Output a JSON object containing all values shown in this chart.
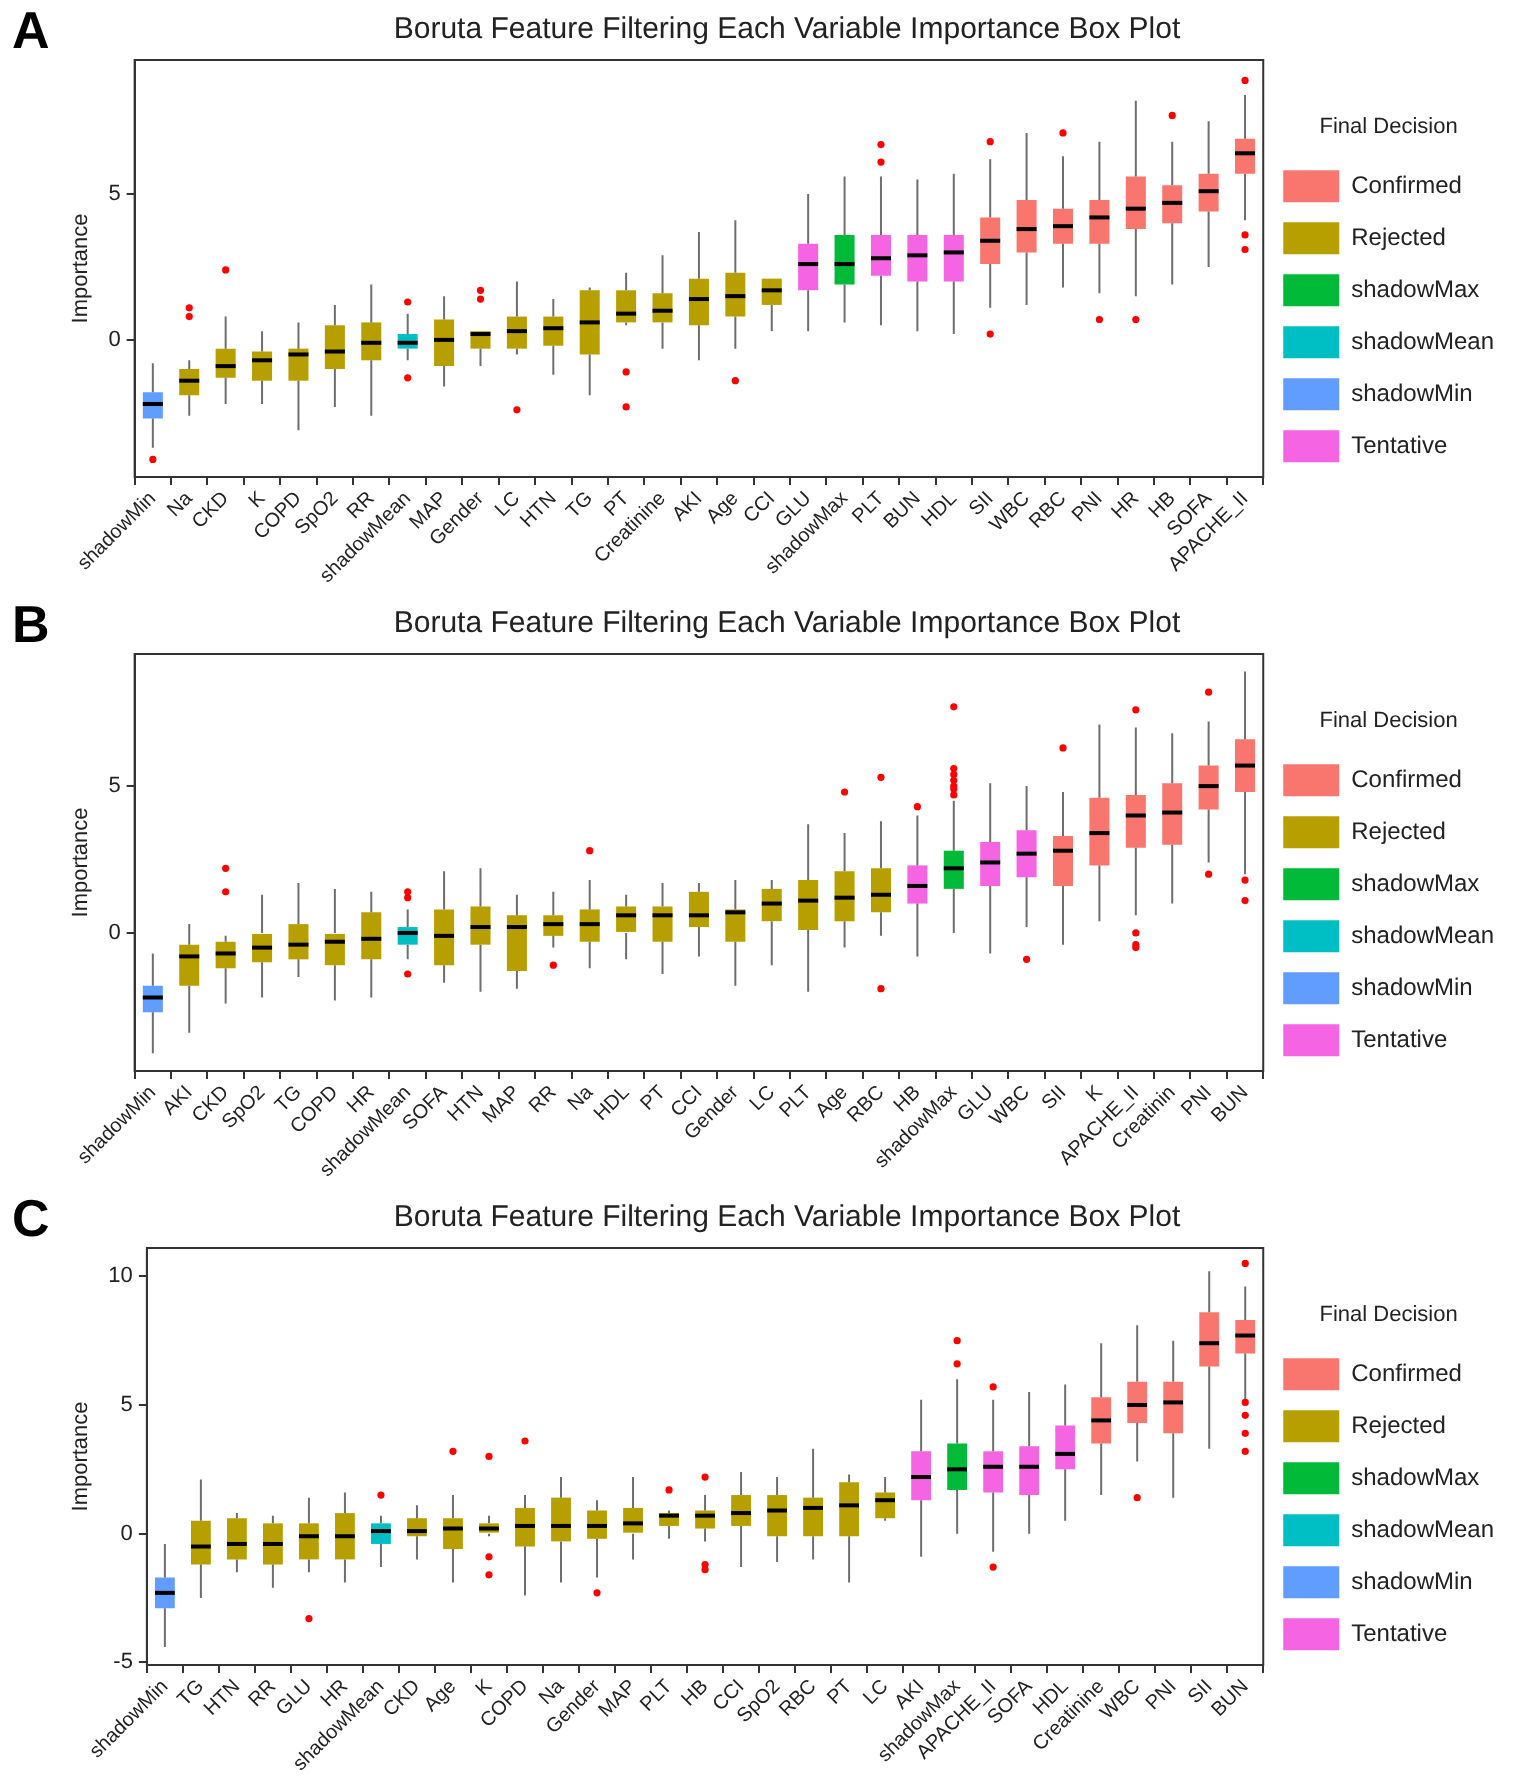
{
  "chart_data": [
    {
      "type": "box",
      "title": "Boruta Feature Filtering Each Variable Importance Box Plot",
      "ylabel": "Importance",
      "legend_title": "Final Decision",
      "legend": "right",
      "annotations": [
        "A"
      ],
      "ylim": [
        -4.7,
        9.6
      ],
      "yticks": [
        0,
        5
      ],
      "categories": [
        "shadowMin",
        "Na",
        "CKD",
        "K",
        "COPD",
        "SpO2",
        "RR",
        "shadowMean",
        "MAP",
        "Gender",
        "LC",
        "HTN",
        "TG",
        "PT",
        "Creatinine",
        "AKI",
        "Age",
        "CCI",
        "GLU",
        "shadowMax",
        "PLT",
        "BUN",
        "HDL",
        "SII",
        "WBC",
        "RBC",
        "PNI",
        "HR",
        "HB",
        "SOFA",
        "APACHE_II"
      ],
      "series": [
        {
          "name": "Confirmed",
          "color": "#f8766d",
          "boxes": [
            null,
            null,
            null,
            null,
            null,
            null,
            null,
            null,
            null,
            null,
            null,
            null,
            null,
            null,
            null,
            null,
            null,
            null,
            null,
            null,
            null,
            null,
            null,
            {
              "low": 1.1,
              "q1": 2.6,
              "median": 3.4,
              "q3": 4.2,
              "high": 6.2,
              "outliers": [
                6.8,
                0.2
              ]
            },
            {
              "low": 1.2,
              "q1": 3.0,
              "median": 3.8,
              "q3": 4.8,
              "high": 7.1
            },
            {
              "low": 1.8,
              "q1": 3.3,
              "median": 3.9,
              "q3": 4.5,
              "high": 6.3,
              "outliers": [
                7.1
              ]
            },
            {
              "low": 1.6,
              "q1": 3.3,
              "median": 4.2,
              "q3": 4.8,
              "high": 6.8,
              "outliers": [
                0.7
              ]
            },
            {
              "low": 1.5,
              "q1": 3.8,
              "median": 4.5,
              "q3": 5.6,
              "high": 8.2,
              "outliers": [
                0.7
              ]
            },
            {
              "low": 1.9,
              "q1": 4.0,
              "median": 4.7,
              "q3": 5.3,
              "high": 6.8,
              "outliers": [
                7.7
              ]
            },
            {
              "low": 2.5,
              "q1": 4.4,
              "median": 5.1,
              "q3": 5.7,
              "high": 7.5
            },
            {
              "low": 4.1,
              "q1": 5.7,
              "median": 6.4,
              "q3": 6.9,
              "high": 8.4,
              "outliers": [
                8.9,
                3.6,
                3.1
              ]
            }
          ]
        },
        {
          "name": "Rejected",
          "color": "#b79f00",
          "boxes": [
            null,
            {
              "low": -2.6,
              "q1": -1.9,
              "median": -1.4,
              "q3": -1.0,
              "high": -0.7,
              "outliers": [
                1.1,
                0.8
              ]
            },
            {
              "low": -2.2,
              "q1": -1.3,
              "median": -0.9,
              "q3": -0.3,
              "high": 0.8,
              "outliers": [
                2.4
              ]
            },
            {
              "low": -2.2,
              "q1": -1.4,
              "median": -0.7,
              "q3": -0.4,
              "high": 0.3
            },
            {
              "low": -3.1,
              "q1": -1.4,
              "median": -0.5,
              "q3": -0.3,
              "high": 0.6
            },
            {
              "low": -2.3,
              "q1": -1.0,
              "median": -0.4,
              "q3": 0.5,
              "high": 1.2
            },
            {
              "low": -2.6,
              "q1": -0.7,
              "median": -0.1,
              "q3": 0.6,
              "high": 1.9
            },
            null,
            {
              "low": -1.6,
              "q1": -0.9,
              "median": 0.0,
              "q3": 0.7,
              "high": 1.5
            },
            {
              "low": -0.9,
              "q1": -0.3,
              "median": 0.2,
              "q3": 0.3,
              "high": 0.3,
              "outliers": [
                1.7,
                1.4
              ]
            },
            {
              "low": -0.5,
              "q1": -0.3,
              "median": 0.3,
              "q3": 0.8,
              "high": 2.0,
              "outliers": [
                -2.4
              ]
            },
            {
              "low": -1.2,
              "q1": -0.2,
              "median": 0.4,
              "q3": 0.8,
              "high": 1.4
            },
            {
              "low": -1.9,
              "q1": -0.5,
              "median": 0.6,
              "q3": 1.7,
              "high": 1.8
            },
            {
              "low": 0.5,
              "q1": 0.6,
              "median": 0.9,
              "q3": 1.7,
              "high": 2.3,
              "outliers": [
                -1.1,
                -2.3
              ]
            },
            {
              "low": -0.3,
              "q1": 0.6,
              "median": 1.0,
              "q3": 1.6,
              "high": 2.9
            },
            {
              "low": -0.7,
              "q1": 0.5,
              "median": 1.4,
              "q3": 2.1,
              "high": 3.7
            },
            {
              "low": -0.3,
              "q1": 0.8,
              "median": 1.5,
              "q3": 2.3,
              "high": 4.1,
              "outliers": [
                -1.4
              ]
            },
            {
              "low": 0.3,
              "q1": 1.2,
              "median": 1.7,
              "q3": 2.1,
              "high": 2.1
            },
            null,
            null,
            null,
            null,
            null,
            null,
            null,
            null,
            null,
            null,
            null,
            null,
            null
          ]
        },
        {
          "name": "shadowMax",
          "color": "#00ba38",
          "boxes": [
            null,
            null,
            null,
            null,
            null,
            null,
            null,
            null,
            null,
            null,
            null,
            null,
            null,
            null,
            null,
            null,
            null,
            null,
            null,
            {
              "low": 0.6,
              "q1": 1.9,
              "median": 2.6,
              "q3": 3.6,
              "high": 5.6
            },
            null,
            null,
            null,
            null,
            null,
            null,
            null,
            null,
            null,
            null,
            null
          ]
        },
        {
          "name": "shadowMean",
          "color": "#00bfc4",
          "boxes": [
            null,
            null,
            null,
            null,
            null,
            null,
            null,
            {
              "low": -0.7,
              "q1": -0.3,
              "median": -0.1,
              "q3": 0.2,
              "high": 0.9,
              "outliers": [
                1.3,
                -1.3
              ]
            },
            null,
            null,
            null,
            null,
            null,
            null,
            null,
            null,
            null,
            null,
            null,
            null,
            null,
            null,
            null,
            null,
            null,
            null,
            null,
            null,
            null,
            null,
            null
          ]
        },
        {
          "name": "shadowMin",
          "color": "#619cff",
          "boxes": [
            {
              "low": -3.7,
              "q1": -2.7,
              "median": -2.2,
              "q3": -1.8,
              "high": -0.8,
              "outliers": [
                -4.1
              ]
            },
            null,
            null,
            null,
            null,
            null,
            null,
            null,
            null,
            null,
            null,
            null,
            null,
            null,
            null,
            null,
            null,
            null,
            null,
            null,
            null,
            null,
            null,
            null,
            null,
            null,
            null,
            null,
            null,
            null,
            null
          ]
        },
        {
          "name": "Tentative",
          "color": "#f564e3",
          "boxes": [
            null,
            null,
            null,
            null,
            null,
            null,
            null,
            null,
            null,
            null,
            null,
            null,
            null,
            null,
            null,
            null,
            null,
            null,
            {
              "low": 0.3,
              "q1": 1.7,
              "median": 2.6,
              "q3": 3.3,
              "high": 5.0
            },
            null,
            {
              "low": 0.5,
              "q1": 2.2,
              "median": 2.8,
              "q3": 3.6,
              "high": 5.6,
              "outliers": [
                6.7,
                6.1
              ]
            },
            {
              "low": 0.3,
              "q1": 2.0,
              "median": 2.9,
              "q3": 3.6,
              "high": 5.5
            },
            {
              "low": 0.2,
              "q1": 2.0,
              "median": 3.0,
              "q3": 3.6,
              "high": 5.7
            },
            null,
            null,
            null,
            null,
            null,
            null,
            null,
            null
          ]
        }
      ]
    },
    {
      "type": "box",
      "title": "Boruta Feature Filtering Each Variable Importance Box Plot",
      "ylabel": "Importance",
      "legend_title": "Final Decision",
      "legend": "right",
      "annotations": [
        "B"
      ],
      "ylim": [
        -4.7,
        9.5
      ],
      "yticks": [
        0,
        5
      ],
      "categories": [
        "shadowMin",
        "AKI",
        "CKD",
        "SpO2",
        "TG",
        "COPD",
        "HR",
        "shadowMean",
        "SOFA",
        "HTN",
        "MAP",
        "RR",
        "Na",
        "HDL",
        "PT",
        "CCI",
        "Gender",
        "LC",
        "PLT",
        "Age",
        "RBC",
        "HB",
        "shadowMax",
        "GLU",
        "WBC",
        "SII",
        "K",
        "APACHE_II",
        "Creatinin",
        "PNI",
        "BUN"
      ],
      "series": [
        {
          "name": "Confirmed",
          "color": "#f8766d",
          "boxes": [
            null,
            null,
            null,
            null,
            null,
            null,
            null,
            null,
            null,
            null,
            null,
            null,
            null,
            null,
            null,
            null,
            null,
            null,
            null,
            null,
            null,
            null,
            null,
            null,
            null,
            {
              "low": -0.4,
              "q1": 1.6,
              "median": 2.8,
              "q3": 3.3,
              "high": 4.8,
              "outliers": [
                6.3
              ]
            },
            {
              "low": 0.4,
              "q1": 2.3,
              "median": 3.4,
              "q3": 4.6,
              "high": 7.1
            },
            {
              "low": 0.6,
              "q1": 2.9,
              "median": 4.0,
              "q3": 4.7,
              "high": 7.0,
              "outliers": [
                7.6,
                0.0,
                -0.4,
                -0.5
              ]
            },
            {
              "low": 1.0,
              "q1": 3.0,
              "median": 4.1,
              "q3": 5.1,
              "high": 6.8
            },
            {
              "low": 2.4,
              "q1": 4.2,
              "median": 5.0,
              "q3": 5.7,
              "high": 7.2,
              "outliers": [
                8.2,
                2.0
              ]
            },
            {
              "low": 2.0,
              "q1": 4.8,
              "median": 5.7,
              "q3": 6.6,
              "high": 8.9,
              "outliers": [
                1.8,
                1.1
              ]
            }
          ]
        },
        {
          "name": "Rejected",
          "color": "#b79f00",
          "boxes": [
            null,
            {
              "low": -3.4,
              "q1": -1.8,
              "median": -0.8,
              "q3": -0.4,
              "high": 0.3
            },
            {
              "low": -2.4,
              "q1": -1.2,
              "median": -0.7,
              "q3": -0.3,
              "high": -0.1,
              "outliers": [
                2.2,
                1.4
              ]
            },
            {
              "low": -2.2,
              "q1": -1.0,
              "median": -0.5,
              "q3": 0.0,
              "high": 1.3
            },
            {
              "low": -1.5,
              "q1": -0.9,
              "median": -0.4,
              "q3": 0.3,
              "high": 1.7
            },
            {
              "low": -2.3,
              "q1": -1.1,
              "median": -0.3,
              "q3": 0.0,
              "high": 1.5
            },
            {
              "low": -2.2,
              "q1": -0.9,
              "median": -0.2,
              "q3": 0.7,
              "high": 1.4
            },
            null,
            {
              "low": -1.7,
              "q1": -1.1,
              "median": -0.1,
              "q3": 0.8,
              "high": 2.1
            },
            {
              "low": -2.0,
              "q1": -0.4,
              "median": 0.2,
              "q3": 0.9,
              "high": 2.2
            },
            {
              "low": -1.9,
              "q1": -1.3,
              "median": 0.2,
              "q3": 0.6,
              "high": 1.3
            },
            {
              "low": -0.5,
              "q1": -0.1,
              "median": 0.3,
              "q3": 0.6,
              "high": 1.4,
              "outliers": [
                -1.1
              ]
            },
            {
              "low": -1.2,
              "q1": -0.3,
              "median": 0.3,
              "q3": 0.8,
              "high": 1.8,
              "outliers": [
                2.8
              ]
            },
            {
              "low": -0.9,
              "q1": 0.0,
              "median": 0.6,
              "q3": 0.9,
              "high": 1.3
            },
            {
              "low": -1.4,
              "q1": -0.3,
              "median": 0.6,
              "q3": 0.9,
              "high": 1.7
            },
            {
              "low": -0.8,
              "q1": 0.2,
              "median": 0.6,
              "q3": 1.4,
              "high": 1.7
            },
            {
              "low": -1.8,
              "q1": -0.3,
              "median": 0.7,
              "q3": 0.8,
              "high": 1.8
            },
            {
              "low": -1.1,
              "q1": 0.4,
              "median": 1.0,
              "q3": 1.5,
              "high": 1.8
            },
            {
              "low": -2.0,
              "q1": 0.1,
              "median": 1.1,
              "q3": 1.8,
              "high": 3.7
            },
            {
              "low": -0.5,
              "q1": 0.4,
              "median": 1.2,
              "q3": 2.1,
              "high": 3.4,
              "outliers": [
                4.8
              ]
            },
            {
              "low": -0.1,
              "q1": 0.7,
              "median": 1.3,
              "q3": 2.2,
              "high": 3.8,
              "outliers": [
                5.3,
                -1.9
              ]
            },
            null,
            null,
            null,
            null,
            null,
            null,
            null,
            null,
            null,
            null
          ]
        },
        {
          "name": "shadowMax",
          "color": "#00ba38",
          "boxes": [
            null,
            null,
            null,
            null,
            null,
            null,
            null,
            null,
            null,
            null,
            null,
            null,
            null,
            null,
            null,
            null,
            null,
            null,
            null,
            null,
            null,
            null,
            {
              "low": 0.0,
              "q1": 1.5,
              "median": 2.2,
              "q3": 2.8,
              "high": 4.5,
              "outliers": [
                7.7,
                5.6,
                5.4,
                5.2,
                5.0,
                4.9,
                4.7
              ]
            },
            null,
            null,
            null,
            null,
            null,
            null,
            null,
            null
          ]
        },
        {
          "name": "shadowMean",
          "color": "#00bfc4",
          "boxes": [
            null,
            null,
            null,
            null,
            null,
            null,
            null,
            {
              "low": -0.9,
              "q1": -0.4,
              "median": 0.0,
              "q3": 0.2,
              "high": 0.8,
              "outliers": [
                1.4,
                1.2,
                -1.4
              ]
            },
            null,
            null,
            null,
            null,
            null,
            null,
            null,
            null,
            null,
            null,
            null,
            null,
            null,
            null,
            null,
            null,
            null,
            null,
            null,
            null,
            null,
            null,
            null
          ]
        },
        {
          "name": "shadowMin",
          "color": "#619cff",
          "boxes": [
            {
              "low": -4.1,
              "q1": -2.7,
              "median": -2.2,
              "q3": -1.8,
              "high": -0.7
            },
            null,
            null,
            null,
            null,
            null,
            null,
            null,
            null,
            null,
            null,
            null,
            null,
            null,
            null,
            null,
            null,
            null,
            null,
            null,
            null,
            null,
            null,
            null,
            null,
            null,
            null,
            null,
            null,
            null,
            null
          ]
        },
        {
          "name": "Tentative",
          "color": "#f564e3",
          "boxes": [
            null,
            null,
            null,
            null,
            null,
            null,
            null,
            null,
            null,
            null,
            null,
            null,
            null,
            null,
            null,
            null,
            null,
            null,
            null,
            null,
            null,
            {
              "low": -0.8,
              "q1": 1.0,
              "median": 1.6,
              "q3": 2.3,
              "high": 4.0,
              "outliers": [
                4.3
              ]
            },
            null,
            {
              "low": -0.7,
              "q1": 1.6,
              "median": 2.4,
              "q3": 3.1,
              "high": 5.1
            },
            {
              "low": 0.2,
              "q1": 1.9,
              "median": 2.7,
              "q3": 3.5,
              "high": 5.0,
              "outliers": [
                -0.9
              ]
            },
            null,
            null,
            null,
            null,
            null,
            null
          ]
        }
      ]
    },
    {
      "type": "box",
      "title": "Boruta Feature Filtering Each Variable Importance Box Plot",
      "ylabel": "Importance",
      "legend_title": "Final Decision",
      "legend": "right",
      "annotations": [
        "C"
      ],
      "ylim": [
        -5.1,
        11.1
      ],
      "yticks": [
        -5,
        0,
        5,
        10
      ],
      "categories": [
        "shadowMin",
        "TG",
        "HTN",
        "RR",
        "GLU",
        "HR",
        "shadowMean",
        "CKD",
        "Age",
        "K",
        "COPD",
        "Na",
        "Gender",
        "MAP",
        "PLT",
        "HB",
        "CCI",
        "SpO2",
        "RBC",
        "PT",
        "LC",
        "AKI",
        "shadowMax",
        "APACHE_II",
        "SOFA",
        "HDL",
        "Creatinine",
        "WBC",
        "PNI",
        "SII",
        "BUN"
      ],
      "series": [
        {
          "name": "Confirmed",
          "color": "#f8766d",
          "boxes": [
            null,
            null,
            null,
            null,
            null,
            null,
            null,
            null,
            null,
            null,
            null,
            null,
            null,
            null,
            null,
            null,
            null,
            null,
            null,
            null,
            null,
            null,
            null,
            null,
            null,
            null,
            {
              "low": 1.5,
              "q1": 3.5,
              "median": 4.4,
              "q3": 5.3,
              "high": 7.4
            },
            {
              "low": 2.8,
              "q1": 4.3,
              "median": 5.0,
              "q3": 5.9,
              "high": 8.1,
              "outliers": [
                1.4
              ]
            },
            {
              "low": 1.4,
              "q1": 3.9,
              "median": 5.1,
              "q3": 5.9,
              "high": 7.5
            },
            {
              "low": 3.3,
              "q1": 6.5,
              "median": 7.4,
              "q3": 8.6,
              "high": 10.2
            },
            {
              "low": 5.2,
              "q1": 7.0,
              "median": 7.7,
              "q3": 8.3,
              "high": 9.6,
              "outliers": [
                10.5,
                5.1,
                4.6,
                3.9,
                3.2
              ]
            }
          ]
        },
        {
          "name": "Rejected",
          "color": "#b79f00",
          "boxes": [
            null,
            {
              "low": -2.5,
              "q1": -1.2,
              "median": -0.5,
              "q3": 0.5,
              "high": 2.1
            },
            {
              "low": -1.5,
              "q1": -1.0,
              "median": -0.4,
              "q3": 0.6,
              "high": 0.8
            },
            {
              "low": -2.1,
              "q1": -1.2,
              "median": -0.4,
              "q3": 0.4,
              "high": 0.7
            },
            {
              "low": -1.5,
              "q1": -1.0,
              "median": -0.1,
              "q3": 0.4,
              "high": 1.4,
              "outliers": [
                -3.3
              ]
            },
            {
              "low": -1.9,
              "q1": -1.0,
              "median": -0.1,
              "q3": 0.8,
              "high": 1.6
            },
            null,
            {
              "low": -1.0,
              "q1": -0.1,
              "median": 0.1,
              "q3": 0.6,
              "high": 1.1
            },
            {
              "low": -1.9,
              "q1": -0.6,
              "median": 0.2,
              "q3": 0.6,
              "high": 1.5,
              "outliers": [
                3.2
              ]
            },
            {
              "low": -0.1,
              "q1": 0.0,
              "median": 0.2,
              "q3": 0.4,
              "high": 0.7,
              "outliers": [
                3.0,
                -0.9,
                -1.6
              ]
            },
            {
              "low": -2.4,
              "q1": -0.5,
              "median": 0.3,
              "q3": 1.0,
              "high": 1.5,
              "outliers": [
                3.6
              ]
            },
            {
              "low": -1.9,
              "q1": -0.3,
              "median": 0.3,
              "q3": 1.4,
              "high": 2.2
            },
            {
              "low": -1.7,
              "q1": -0.2,
              "median": 0.3,
              "q3": 0.9,
              "high": 1.3,
              "outliers": [
                -2.3
              ]
            },
            {
              "low": -1.0,
              "q1": 0.0,
              "median": 0.4,
              "q3": 1.0,
              "high": 2.2
            },
            {
              "low": -0.2,
              "q1": 0.3,
              "median": 0.7,
              "q3": 0.8,
              "high": 0.9,
              "outliers": [
                1.7
              ]
            },
            {
              "low": -0.3,
              "q1": 0.2,
              "median": 0.7,
              "q3": 0.9,
              "high": 1.5,
              "outliers": [
                2.2,
                -1.2,
                -1.4
              ]
            },
            {
              "low": -1.3,
              "q1": 0.3,
              "median": 0.8,
              "q3": 1.5,
              "high": 2.4
            },
            {
              "low": -1.1,
              "q1": -0.1,
              "median": 0.9,
              "q3": 1.5,
              "high": 2.2
            },
            {
              "low": -1.0,
              "q1": -0.1,
              "median": 1.0,
              "q3": 1.4,
              "high": 3.3
            },
            {
              "low": -1.9,
              "q1": -0.1,
              "median": 1.1,
              "q3": 2.0,
              "high": 2.3
            },
            {
              "low": 0.5,
              "q1": 0.6,
              "median": 1.3,
              "q3": 1.6,
              "high": 2.2
            },
            null,
            null,
            null,
            null,
            null,
            null,
            null,
            null,
            null,
            null
          ]
        },
        {
          "name": "shadowMax",
          "color": "#00ba38",
          "boxes": [
            null,
            null,
            null,
            null,
            null,
            null,
            null,
            null,
            null,
            null,
            null,
            null,
            null,
            null,
            null,
            null,
            null,
            null,
            null,
            null,
            null,
            null,
            {
              "low": 0.0,
              "q1": 1.7,
              "median": 2.5,
              "q3": 3.5,
              "high": 6.0,
              "outliers": [
                7.5,
                6.6
              ]
            },
            null,
            null,
            null,
            null,
            null,
            null,
            null,
            null
          ]
        },
        {
          "name": "shadowMean",
          "color": "#00bfc4",
          "boxes": [
            null,
            null,
            null,
            null,
            null,
            null,
            {
              "low": -1.3,
              "q1": -0.4,
              "median": 0.1,
              "q3": 0.4,
              "high": 0.7,
              "outliers": [
                1.5
              ]
            },
            null,
            null,
            null,
            null,
            null,
            null,
            null,
            null,
            null,
            null,
            null,
            null,
            null,
            null,
            null,
            null,
            null,
            null,
            null,
            null,
            null,
            null,
            null,
            null
          ]
        },
        {
          "name": "shadowMin",
          "color": "#619cff",
          "boxes": [
            {
              "low": -4.4,
              "q1": -2.9,
              "median": -2.3,
              "q3": -1.7,
              "high": -0.4
            },
            null,
            null,
            null,
            null,
            null,
            null,
            null,
            null,
            null,
            null,
            null,
            null,
            null,
            null,
            null,
            null,
            null,
            null,
            null,
            null,
            null,
            null,
            null,
            null,
            null,
            null,
            null,
            null,
            null,
            null
          ]
        },
        {
          "name": "Tentative",
          "color": "#f564e3",
          "boxes": [
            null,
            null,
            null,
            null,
            null,
            null,
            null,
            null,
            null,
            null,
            null,
            null,
            null,
            null,
            null,
            null,
            null,
            null,
            null,
            null,
            null,
            {
              "low": -0.9,
              "q1": 1.3,
              "median": 2.2,
              "q3": 3.2,
              "high": 5.2
            },
            null,
            {
              "low": -0.7,
              "q1": 1.6,
              "median": 2.6,
              "q3": 3.2,
              "high": 5.2,
              "outliers": [
                5.7,
                -1.3
              ]
            },
            {
              "low": 0.0,
              "q1": 1.5,
              "median": 2.6,
              "q3": 3.4,
              "high": 5.5
            },
            {
              "low": 0.5,
              "q1": 2.5,
              "median": 3.1,
              "q3": 4.2,
              "high": 5.8
            },
            null,
            null,
            null,
            null,
            null
          ]
        }
      ]
    }
  ]
}
